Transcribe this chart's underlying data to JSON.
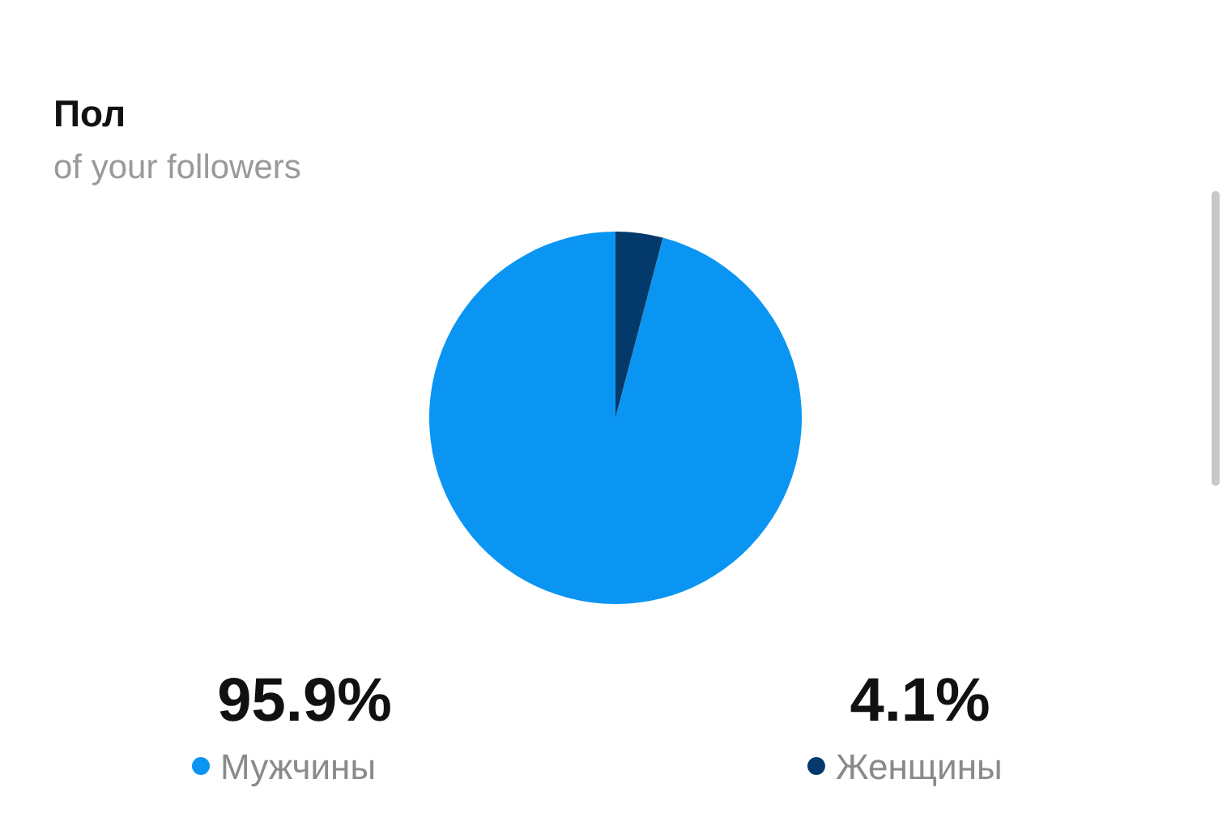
{
  "chart_data": {
    "type": "pie",
    "title": "Пол",
    "subtitle": "of your followers",
    "categories": [
      "Мужчины",
      "Женщины"
    ],
    "values": [
      95.9,
      4.1
    ],
    "colors": [
      "#0a95f3",
      "#033a6b"
    ],
    "value_labels": [
      "95.9%",
      "4.1%"
    ],
    "legend": "bottom"
  }
}
